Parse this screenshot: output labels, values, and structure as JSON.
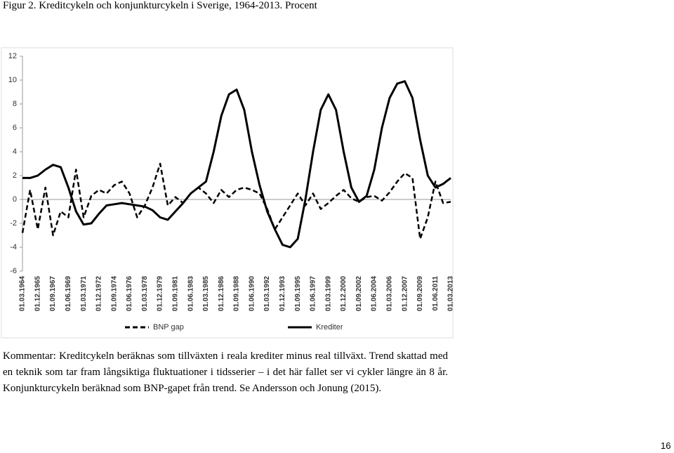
{
  "caption": "Figur 2. Kreditcykeln och konjunkturcykeln i Sverige, 1964-2013. Procent",
  "chart_data": {
    "type": "line",
    "categories": [
      "01.03.1964",
      null,
      "01.12.1965",
      null,
      "01.09.1967",
      null,
      "01.06.1969",
      null,
      "01.03.1971",
      null,
      "01.12.1972",
      null,
      "01.09.1974",
      null,
      "01.06.1976",
      null,
      "01.03.1978",
      null,
      "01.12.1979",
      null,
      "01.09.1981",
      null,
      "01.06.1983",
      null,
      "01.03.1985",
      null,
      "01.12.1986",
      null,
      "01.09.1988",
      null,
      "01.06.1990",
      null,
      "01.03.1992",
      null,
      "01.12.1993",
      null,
      "01.09.1995",
      null,
      "01.06.1997",
      null,
      "01.03.1999",
      null,
      "01.12.2000",
      null,
      "01.09.2002",
      null,
      "01.06.2004",
      null,
      "01.03.2006",
      null,
      "01.12.2007",
      null,
      "01.09.2009",
      null,
      "01.06.2011",
      null,
      "01.03.2013"
    ],
    "series": [
      {
        "name": "BNP gap",
        "color": "#000000",
        "style": "dashed",
        "values": [
          -2.8,
          0.8,
          -2.5,
          1.0,
          -3.0,
          -1.0,
          -1.5,
          2.5,
          -1.5,
          0.3,
          0.8,
          0.5,
          1.2,
          1.5,
          0.5,
          -1.5,
          -0.5,
          1.0,
          3.0,
          -0.5,
          0.2,
          -0.3,
          0.5,
          1.0,
          0.5,
          -0.3,
          0.8,
          0.2,
          0.8,
          1.0,
          0.8,
          0.5,
          -0.8,
          -2.5,
          -1.5,
          -0.5,
          0.5,
          -0.5,
          0.5,
          -0.8,
          -0.3,
          0.3,
          0.8,
          0.1,
          -0.2,
          0.2,
          0.3,
          -0.1,
          0.6,
          1.5,
          2.2,
          1.8,
          -3.3,
          -1.5,
          1.5,
          -0.3,
          -0.2
        ]
      },
      {
        "name": "Krediter",
        "color": "#000000",
        "style": "solid",
        "values": [
          1.8,
          1.8,
          2.0,
          2.5,
          2.9,
          2.7,
          1.0,
          -1.0,
          -2.1,
          -2.0,
          -1.2,
          -0.5,
          -0.4,
          -0.3,
          -0.4,
          -0.5,
          -0.6,
          -0.9,
          -1.5,
          -1.7,
          -1.0,
          -0.3,
          0.5,
          1.0,
          1.5,
          4.0,
          7.0,
          8.8,
          9.2,
          7.5,
          4.0,
          1.2,
          -1.0,
          -2.5,
          -3.8,
          -4.0,
          -3.3,
          0.0,
          4.0,
          7.5,
          8.8,
          7.5,
          4.0,
          1.0,
          -0.2,
          0.3,
          2.5,
          6.0,
          8.5,
          9.7,
          9.9,
          8.5,
          5.0,
          2.0,
          1.0,
          1.3,
          1.8
        ]
      }
    ],
    "ylim": [
      -6,
      12
    ],
    "yticks": [
      -6,
      -4,
      -2,
      0,
      2,
      4,
      6,
      8,
      10,
      12
    ],
    "grid": false,
    "legend": "bottom"
  },
  "comment": "Kommentar: Kreditcykeln beräknas som tillväxten i reala krediter minus real tillväxt. Trend skattad med en teknik som tar fram långsiktiga fluktuationer i tidsserier – i det här fallet ser vi cykler längre än 8 år. Konjunkturcykeln beräknad som BNP-gapet från trend. Se Andersson och Jonung (2015).",
  "page_number": "16"
}
